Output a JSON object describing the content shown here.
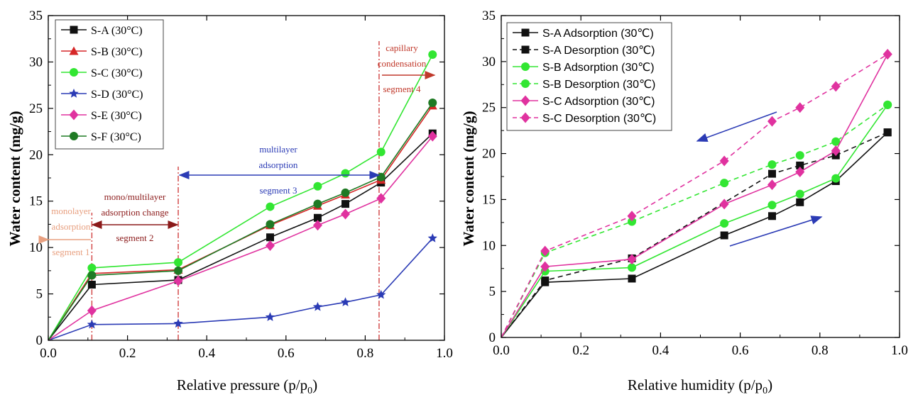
{
  "chart_data": [
    {
      "type": "line",
      "xlabel": "Relative pressure (p/p",
      "xlabel_sub": "0",
      "xlabel_tail": ")",
      "ylabel": "Water content (mg/g)",
      "xlim": [
        0.0,
        1.0
      ],
      "ylim": [
        0,
        35
      ],
      "xticks": [
        "0.0",
        "0.2",
        "0.4",
        "0.6",
        "0.8",
        "1.0"
      ],
      "yticks": [
        "0",
        "5",
        "10",
        "15",
        "20",
        "25",
        "30",
        "35"
      ],
      "grid": false,
      "legend_position": "top-left",
      "x": [
        0.0,
        0.11,
        0.328,
        0.56,
        0.68,
        0.75,
        0.84,
        0.97
      ],
      "series": [
        {
          "name": "S-A (30°C)",
          "color": "#111111",
          "marker": "square",
          "dash": "solid",
          "values": [
            0,
            6.0,
            6.5,
            11.1,
            13.2,
            14.7,
            17.0,
            22.3
          ]
        },
        {
          "name": "S-B (30°C)",
          "color": "#d62728",
          "marker": "triangle",
          "dash": "solid",
          "values": [
            0,
            7.2,
            7.6,
            12.4,
            14.5,
            15.7,
            17.3,
            25.3
          ]
        },
        {
          "name": "S-C (30°C)",
          "color": "#32e632",
          "marker": "circle",
          "dash": "solid",
          "values": [
            0,
            7.8,
            8.4,
            14.4,
            16.6,
            18.0,
            20.3,
            30.8
          ]
        },
        {
          "name": "S-D (30°C)",
          "color": "#2b3bb5",
          "marker": "star",
          "dash": "solid",
          "values": [
            0,
            1.7,
            1.8,
            2.5,
            3.6,
            4.1,
            4.9,
            11.0
          ]
        },
        {
          "name": "S-E (30°C)",
          "color": "#e0329f",
          "marker": "diamond",
          "dash": "solid",
          "values": [
            0,
            3.2,
            6.4,
            10.2,
            12.4,
            13.6,
            15.3,
            22.0
          ]
        },
        {
          "name": "S-F (30°C)",
          "color": "#1f7a24",
          "marker": "circle",
          "dash": "solid",
          "values": [
            0,
            7.0,
            7.5,
            12.5,
            14.7,
            15.9,
            17.6,
            25.6
          ]
        }
      ],
      "vlines": [
        0.11,
        0.328,
        0.835
      ],
      "annotations": [
        {
          "lines": [
            "monolayer",
            "adsorption",
            "segment 1"
          ],
          "color": "#e8a080"
        },
        {
          "lines": [
            "mono/multilayer",
            "adsorption change",
            "segment 2"
          ],
          "color": "#8b1a1a"
        },
        {
          "lines": [
            "multilayer",
            "adsorption",
            "segment 3"
          ],
          "color": "#2b3bb5"
        },
        {
          "lines": [
            "capillary",
            "condensation",
            "segment 4"
          ],
          "color": "#c0392b"
        }
      ]
    },
    {
      "type": "line",
      "xlabel": "Relative humidity (p/p",
      "xlabel_sub": "0",
      "xlabel_tail": ")",
      "ylabel": "Water content (mg/g)",
      "xlim": [
        0.0,
        1.0
      ],
      "ylim": [
        0,
        35
      ],
      "xticks": [
        "0.0",
        "0.2",
        "0.4",
        "0.6",
        "0.8",
        "1.0"
      ],
      "yticks": [
        "0",
        "5",
        "10",
        "15",
        "20",
        "25",
        "30",
        "35"
      ],
      "grid": false,
      "legend_position": "top-left",
      "x": [
        0.0,
        0.11,
        0.328,
        0.56,
        0.68,
        0.75,
        0.84,
        0.97
      ],
      "series": [
        {
          "name": "S-A Adsorption (30℃)",
          "color": "#111111",
          "marker": "square",
          "dash": "solid",
          "values": [
            0,
            6.0,
            6.4,
            11.1,
            13.2,
            14.7,
            17.0,
            22.3
          ]
        },
        {
          "name": "S-A Desorption (30℃)",
          "color": "#111111",
          "marker": "square",
          "dash": "dashed",
          "values": [
            0,
            6.2,
            8.6,
            null,
            17.8,
            18.7,
            19.8,
            22.3
          ]
        },
        {
          "name": "S-B Adsorption (30℃)",
          "color": "#32e632",
          "marker": "circle",
          "dash": "solid",
          "values": [
            0,
            7.2,
            7.6,
            12.4,
            14.4,
            15.6,
            17.3,
            25.3
          ]
        },
        {
          "name": "S-B Desorption (30℃)",
          "color": "#32e632",
          "marker": "circle",
          "dash": "dashed",
          "values": [
            0,
            9.2,
            12.6,
            16.8,
            18.8,
            19.8,
            21.3,
            25.3
          ]
        },
        {
          "name": "S-C Adsorption (30℃)",
          "color": "#e0329f",
          "marker": "diamond",
          "dash": "solid",
          "values": [
            0,
            7.7,
            8.5,
            14.5,
            16.6,
            18.0,
            20.3,
            30.8
          ]
        },
        {
          "name": "S-C Desorption (30℃)",
          "color": "#e0329f",
          "marker": "diamond",
          "dash": "dashed",
          "values": [
            0,
            9.4,
            13.2,
            19.2,
            23.5,
            25.0,
            27.3,
            30.8
          ]
        }
      ]
    }
  ]
}
